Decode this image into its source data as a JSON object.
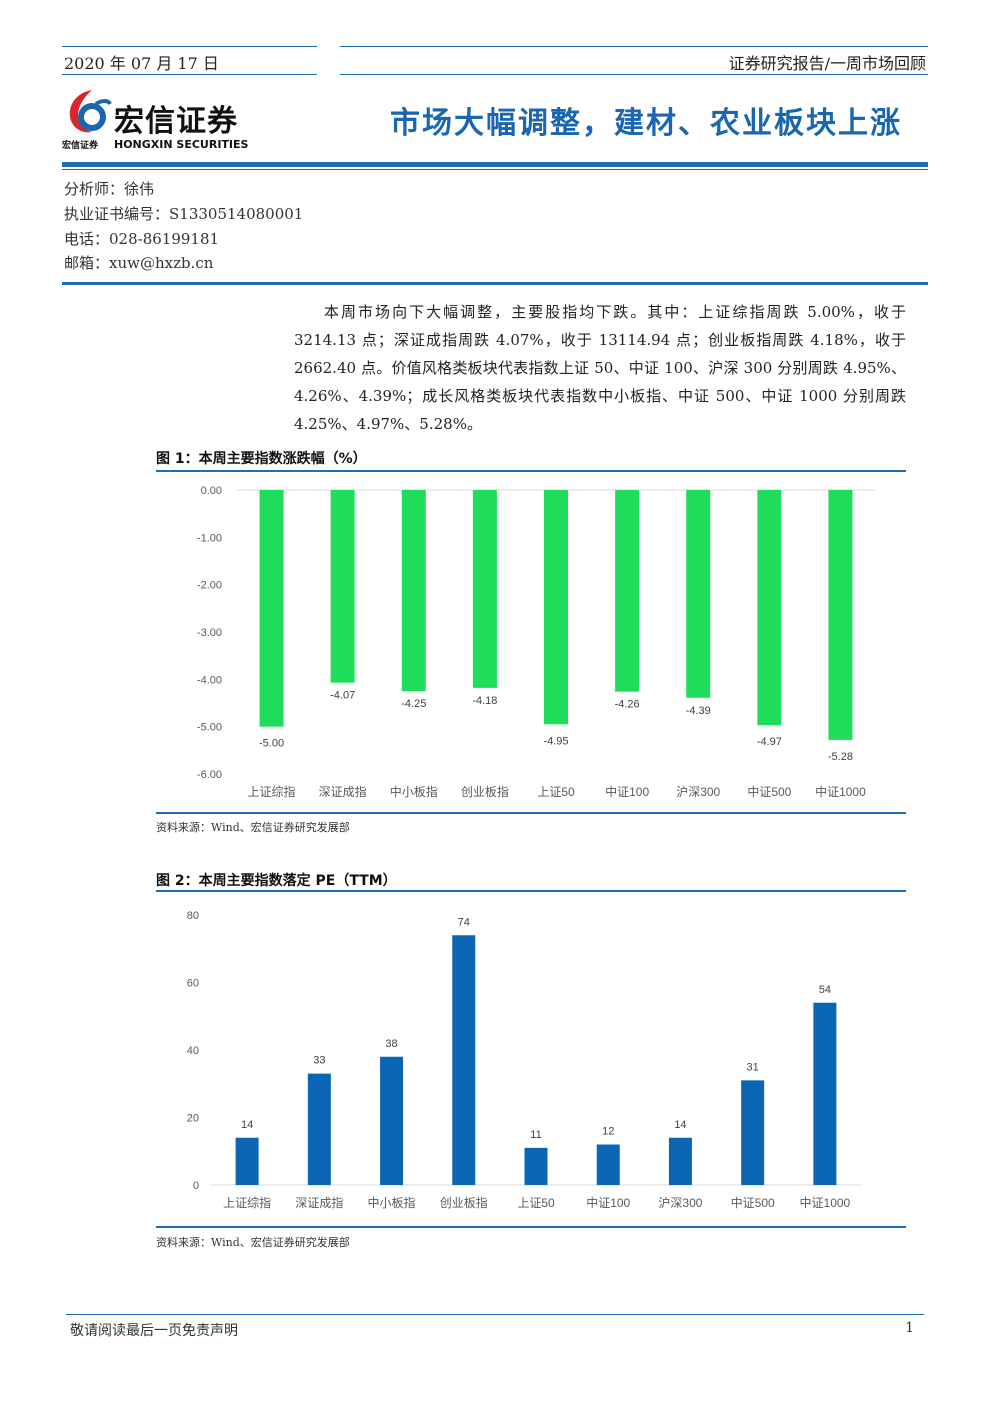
{
  "header": {
    "date": "2020 年 07 月 17 日",
    "report_type": "证券研究报告/一周市场回顾",
    "logo_cn": "宏信证券",
    "logo_small": "宏信证券",
    "logo_en": "HONGXIN SECURITIES",
    "title": "市场大幅调整，建材、农业板块上涨"
  },
  "analyst": {
    "name": "分析师：徐伟",
    "cert": "执业证书编号：S1330514080001",
    "phone": "电话：028-86199181",
    "email": "邮箱：xuw@hxzb.cn"
  },
  "summary": "本周市场向下大幅调整，主要股指均下跌。其中：上证综指周跌 5.00%，收于 3214.13 点；深证成指周跌 4.07%，收于 13114.94 点；创业板指周跌 4.18%，收于 2662.40 点。价值风格类板块代表指数上证 50、中证 100、沪深 300 分别周跌 4.95%、4.26%、4.39%；成长风格类板块代表指数中小板指、中证 500、中证 1000 分别周跌 4.25%、4.97%、5.28%。",
  "figures": {
    "fig1_title": "图 1：本周主要指数涨跌幅（%）",
    "fig1_source": "资料来源：Wind、宏信证券研究发展部",
    "fig2_title": "图 2：本周主要指数落定 PE（TTM）",
    "fig2_source": "资料来源：Wind、宏信证券研究发展部"
  },
  "chart_data": [
    {
      "type": "bar",
      "categories": [
        "上证综指",
        "深证成指",
        "中小板指",
        "创业板指",
        "上证50",
        "中证100",
        "沪深300",
        "中证500",
        "中证1000"
      ],
      "values": [
        -5.0,
        -4.07,
        -4.25,
        -4.18,
        -4.95,
        -4.26,
        -4.39,
        -4.97,
        -5.28
      ],
      "labels": [
        "-5.00",
        "-4.07",
        "-4.25",
        "-4.18",
        "-4.95",
        "-4.26",
        "-4.39",
        "-4.97",
        "-5.28"
      ],
      "yticks": [
        "0.00",
        "-1.00",
        "-2.00",
        "-3.00",
        "-4.00",
        "-5.00",
        "-6.00"
      ],
      "ylim": [
        -6,
        0
      ],
      "color": "#1fdc5a",
      "grid": false
    },
    {
      "type": "bar",
      "categories": [
        "上证综指",
        "深证成指",
        "中小板指",
        "创业板指",
        "上证50",
        "中证100",
        "沪深300",
        "中证500",
        "中证1000"
      ],
      "values": [
        14,
        33,
        38,
        74,
        11,
        12,
        14,
        31,
        54
      ],
      "yticks": [
        "0",
        "20",
        "40",
        "60",
        "80"
      ],
      "ylim": [
        0,
        80
      ],
      "color": "#0a66b4",
      "grid": false
    }
  ],
  "footer": {
    "disclaimer": "敬请阅读最后一页免责声明",
    "page": "1"
  }
}
